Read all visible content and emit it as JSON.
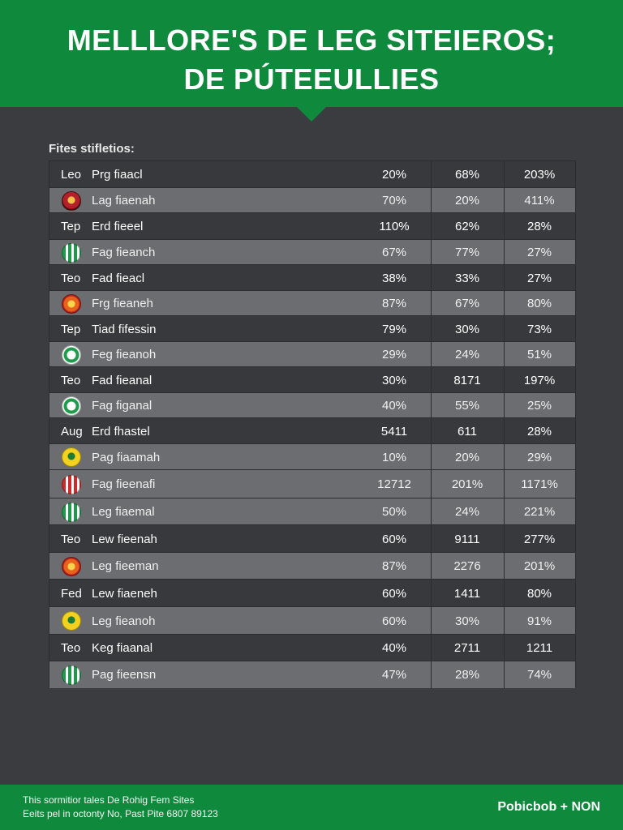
{
  "header": {
    "title_line1": "MELLLORE'S DE LEG SITEIEROS;",
    "title_line2": "DE PÚTEEULLIES"
  },
  "table": {
    "subtitle": "Fites stifletios:",
    "rows": [
      {
        "code": "Leo",
        "badge": null,
        "name": "Prg fiaacl",
        "v1": "20%",
        "v2": "68%",
        "v3": "203%"
      },
      {
        "code": "",
        "badge": "red-crest-icon",
        "name": "Lag fiaenah",
        "v1": "70%",
        "v2": "20%",
        "v3": "411%"
      },
      {
        "code": "Tep",
        "badge": null,
        "name": "Erd fieeel",
        "v1": "110%",
        "v2": "62%",
        "v3": "28%"
      },
      {
        "code": "",
        "badge": "green-stripes-icon",
        "name": "Fag fieanch",
        "v1": "67%",
        "v2": "77%",
        "v3": "27%"
      },
      {
        "code": "Teo",
        "badge": null,
        "name": "Fad fieacl",
        "v1": "38%",
        "v2": "33%",
        "v3": "27%"
      },
      {
        "code": "",
        "badge": "orange-crest-icon",
        "name": "Frg fieaneh",
        "v1": "87%",
        "v2": "67%",
        "v3": "80%"
      },
      {
        "code": "Tep",
        "badge": null,
        "name": "Tiad fifessin",
        "v1": "79%",
        "v2": "30%",
        "v3": "73%"
      },
      {
        "code": "",
        "badge": "green-white-crest-icon",
        "name": "Feg fieanoh",
        "v1": "29%",
        "v2": "24%",
        "v3": "51%"
      },
      {
        "code": "Teo",
        "badge": null,
        "name": "Fad fieanal",
        "v1": "30%",
        "v2": "8171",
        "v3": "197%"
      },
      {
        "code": "",
        "badge": "green-white-crest-icon",
        "name": "Fag figanal",
        "v1": "40%",
        "v2": "55%",
        "v3": "25%"
      },
      {
        "code": "Aug",
        "badge": null,
        "name": "Erd fhastel",
        "v1": "5411",
        "v2": "611",
        "v3": "28%"
      },
      {
        "code": "",
        "badge": "green-yellow-crest-icon",
        "name": "Pag fiaamah",
        "v1": "10%",
        "v2": "20%",
        "v3": "29%"
      },
      {
        "code": "",
        "badge": "red-white-crest-icon",
        "name": "Fag fieenafi",
        "v1": "12712",
        "v2": "201%",
        "v3": "1171%"
      },
      {
        "code": "",
        "badge": "green-stripes-icon",
        "name": "Leg fiaemal",
        "v1": "50%",
        "v2": "24%",
        "v3": "221%"
      },
      {
        "code": "Teo",
        "badge": null,
        "name": "Lew fieenah",
        "v1": "60%",
        "v2": "9111",
        "v3": "277%"
      },
      {
        "code": "",
        "badge": "orange-crest-icon",
        "name": "Leg fieeman",
        "v1": "87%",
        "v2": "2276",
        "v3": "201%"
      },
      {
        "code": "Fed",
        "badge": null,
        "name": "Lew fiaeneh",
        "v1": "60%",
        "v2": "1411",
        "v3": "80%"
      },
      {
        "code": "",
        "badge": "green-yellow-crest-icon",
        "name": "Leg fieanoh",
        "v1": "60%",
        "v2": "30%",
        "v3": "91%"
      },
      {
        "code": "Teo",
        "badge": null,
        "name": "Keg fiaanal",
        "v1": "40%",
        "v2": "2711",
        "v3": "1211"
      },
      {
        "code": "",
        "badge": "green-stripes-icon",
        "name": "Pag fieensn",
        "v1": "47%",
        "v2": "28%",
        "v3": "74%"
      }
    ]
  },
  "footer": {
    "line1": "This sormitior tales De Rohig Fem Sites",
    "line2": "Eeits pel in octonty No, Past Pite 6807 89123",
    "brand": "Pobicbob + NON"
  },
  "colors": {
    "brand_green": "#0f8a3c",
    "background": "#3a3c3f",
    "row_dark": "#37393c",
    "row_light": "#6b6d70"
  }
}
